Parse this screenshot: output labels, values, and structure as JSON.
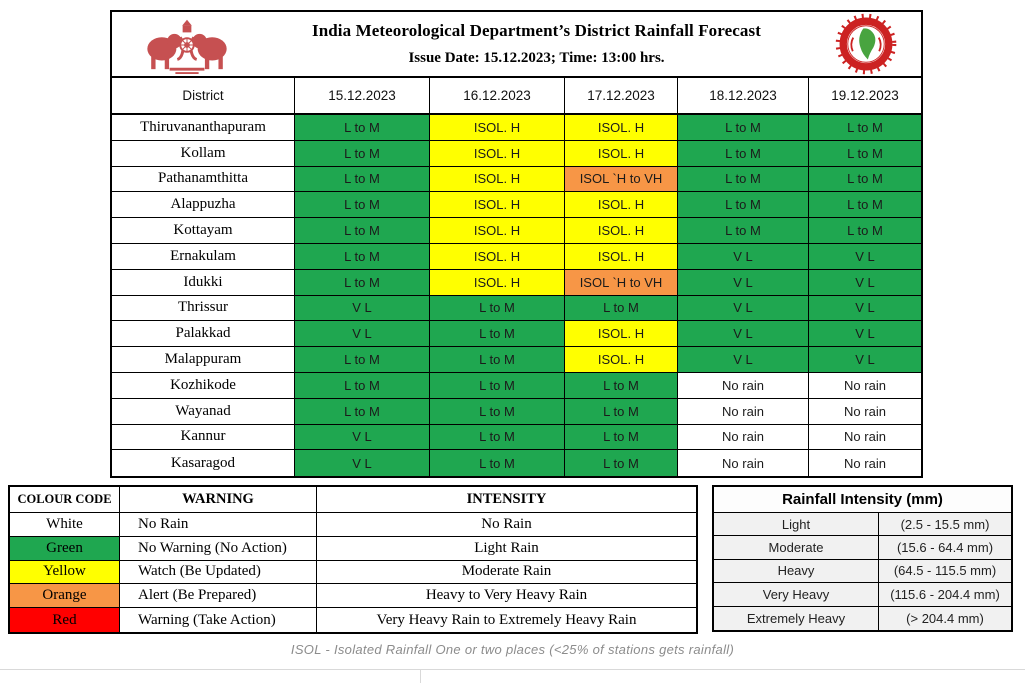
{
  "header": {
    "title": "India Meteorological Department’s District Rainfall Forecast",
    "subtitle": "Issue Date: 15.12.2023; Time: 13:00 hrs.",
    "left_logo": "kerala-government-emblem-icon",
    "right_logo": "imd-round-logo-icon"
  },
  "colors": {
    "green": "#1fa750",
    "yellow": "#ffff00",
    "orange": "#f79646",
    "red": "#ff0000",
    "white": "#ffffff"
  },
  "forecast_table": {
    "columns": [
      "District",
      "15.12.2023",
      "16.12.2023",
      "17.12.2023",
      "18.12.2023",
      "19.12.2023"
    ],
    "rows": [
      {
        "district": "Thiruvananthapuram",
        "cells": [
          {
            "text": "L to M",
            "color": "green"
          },
          {
            "text": "ISOL. H",
            "color": "yellow"
          },
          {
            "text": "ISOL. H",
            "color": "yellow"
          },
          {
            "text": "L to M",
            "color": "green"
          },
          {
            "text": "L to M",
            "color": "green"
          }
        ]
      },
      {
        "district": "Kollam",
        "cells": [
          {
            "text": "L to M",
            "color": "green"
          },
          {
            "text": "ISOL. H",
            "color": "yellow"
          },
          {
            "text": "ISOL. H",
            "color": "yellow"
          },
          {
            "text": "L to M",
            "color": "green"
          },
          {
            "text": "L to M",
            "color": "green"
          }
        ]
      },
      {
        "district": "Pathanamthitta",
        "cells": [
          {
            "text": "L to M",
            "color": "green"
          },
          {
            "text": "ISOL. H",
            "color": "yellow"
          },
          {
            "text": "ISOL `H to VH",
            "color": "orange"
          },
          {
            "text": "L to M",
            "color": "green"
          },
          {
            "text": "L to M",
            "color": "green"
          }
        ]
      },
      {
        "district": "Alappuzha",
        "cells": [
          {
            "text": "L to M",
            "color": "green"
          },
          {
            "text": "ISOL. H",
            "color": "yellow"
          },
          {
            "text": "ISOL. H",
            "color": "yellow"
          },
          {
            "text": "L to M",
            "color": "green"
          },
          {
            "text": "L to M",
            "color": "green"
          }
        ]
      },
      {
        "district": "Kottayam",
        "cells": [
          {
            "text": "L to M",
            "color": "green"
          },
          {
            "text": "ISOL. H",
            "color": "yellow"
          },
          {
            "text": "ISOL. H",
            "color": "yellow"
          },
          {
            "text": "L to M",
            "color": "green"
          },
          {
            "text": "L to M",
            "color": "green"
          }
        ]
      },
      {
        "district": "Ernakulam",
        "cells": [
          {
            "text": "L to M",
            "color": "green"
          },
          {
            "text": "ISOL. H",
            "color": "yellow"
          },
          {
            "text": "ISOL. H",
            "color": "yellow"
          },
          {
            "text": "V L",
            "color": "green"
          },
          {
            "text": "V L",
            "color": "green"
          }
        ]
      },
      {
        "district": "Idukki",
        "cells": [
          {
            "text": "L to M",
            "color": "green"
          },
          {
            "text": "ISOL. H",
            "color": "yellow"
          },
          {
            "text": "ISOL `H to VH",
            "color": "orange"
          },
          {
            "text": "V L",
            "color": "green"
          },
          {
            "text": "V L",
            "color": "green"
          }
        ]
      },
      {
        "district": "Thrissur",
        "cells": [
          {
            "text": "V L",
            "color": "green"
          },
          {
            "text": "L to M",
            "color": "green"
          },
          {
            "text": "L to M",
            "color": "green"
          },
          {
            "text": "V L",
            "color": "green"
          },
          {
            "text": "V L",
            "color": "green"
          }
        ]
      },
      {
        "district": "Palakkad",
        "cells": [
          {
            "text": "V L",
            "color": "green"
          },
          {
            "text": "L to M",
            "color": "green"
          },
          {
            "text": "ISOL. H",
            "color": "yellow"
          },
          {
            "text": "V L",
            "color": "green"
          },
          {
            "text": "V L",
            "color": "green"
          }
        ]
      },
      {
        "district": "Malappuram",
        "cells": [
          {
            "text": "L to M",
            "color": "green"
          },
          {
            "text": "L to M",
            "color": "green"
          },
          {
            "text": "ISOL. H",
            "color": "yellow"
          },
          {
            "text": "V L",
            "color": "green"
          },
          {
            "text": "V L",
            "color": "green"
          }
        ]
      },
      {
        "district": "Kozhikode",
        "cells": [
          {
            "text": "L to M",
            "color": "green"
          },
          {
            "text": "L to M",
            "color": "green"
          },
          {
            "text": "L to M",
            "color": "green"
          },
          {
            "text": "No rain",
            "color": "white"
          },
          {
            "text": "No rain",
            "color": "white"
          }
        ]
      },
      {
        "district": "Wayanad",
        "cells": [
          {
            "text": "L to M",
            "color": "green"
          },
          {
            "text": "L to M",
            "color": "green"
          },
          {
            "text": "L to M",
            "color": "green"
          },
          {
            "text": "No rain",
            "color": "white"
          },
          {
            "text": "No rain",
            "color": "white"
          }
        ]
      },
      {
        "district": "Kannur",
        "cells": [
          {
            "text": "V L",
            "color": "green"
          },
          {
            "text": "L to M",
            "color": "green"
          },
          {
            "text": "L to M",
            "color": "green"
          },
          {
            "text": "No rain",
            "color": "white"
          },
          {
            "text": "No rain",
            "color": "white"
          }
        ]
      },
      {
        "district": "Kasaragod",
        "cells": [
          {
            "text": "V L",
            "color": "green"
          },
          {
            "text": "L to M",
            "color": "green"
          },
          {
            "text": "L to M",
            "color": "green"
          },
          {
            "text": "No rain",
            "color": "white"
          },
          {
            "text": "No rain",
            "color": "white"
          }
        ]
      }
    ]
  },
  "legend": {
    "headers": [
      "COLOUR CODE",
      "WARNING",
      "INTENSITY"
    ],
    "rows": [
      {
        "code": "White",
        "color": "white",
        "warning": "No Rain",
        "intensity": "No Rain"
      },
      {
        "code": "Green",
        "color": "green",
        "warning": "No Warning (No Action)",
        "intensity": "Light Rain"
      },
      {
        "code": "Yellow",
        "color": "yellow",
        "warning": "Watch (Be Updated)",
        "intensity": "Moderate Rain"
      },
      {
        "code": "Orange",
        "color": "orange",
        "warning": "Alert (Be Prepared)",
        "intensity": "Heavy to Very Heavy Rain"
      },
      {
        "code": "Red",
        "color": "red",
        "warning": "Warning (Take Action)",
        "intensity": "Very Heavy Rain to Extremely Heavy Rain"
      }
    ]
  },
  "intensity_table": {
    "title": "Rainfall Intensity (mm)",
    "rows": [
      {
        "label": "Light",
        "range": "(2.5 - 15.5 mm)"
      },
      {
        "label": "Moderate",
        "range": "(15.6 - 64.4 mm)"
      },
      {
        "label": "Heavy",
        "range": "(64.5 - 115.5 mm)"
      },
      {
        "label": "Very Heavy",
        "range": "(115.6 - 204.4 mm)"
      },
      {
        "label": "Extremely Heavy",
        "range": "(> 204.4 mm)"
      }
    ]
  },
  "footer": {
    "note": "ISOL - Isolated Rainfall One or two places (<25% of stations  gets rainfall)"
  }
}
